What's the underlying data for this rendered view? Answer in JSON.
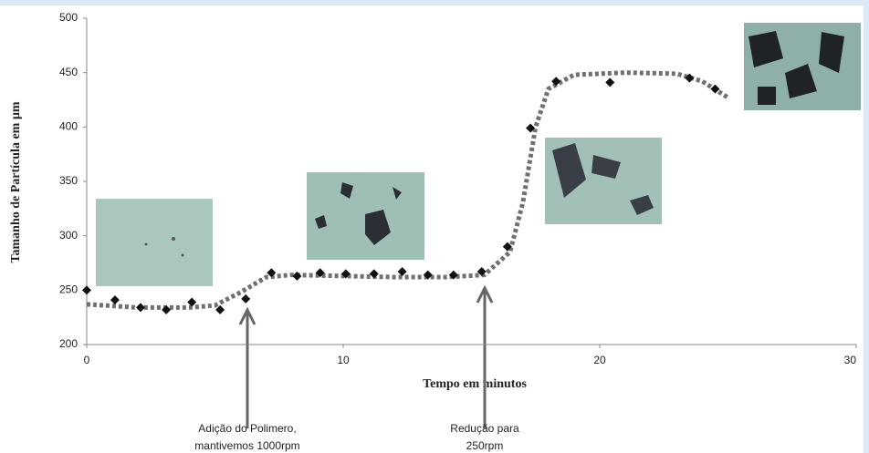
{
  "chart_data": {
    "type": "scatter",
    "xlabel": "Tempo em minutos",
    "ylabel": "Tamanho de Partícula em µm",
    "x": [
      0,
      1.1,
      2.1,
      3.1,
      4.1,
      5.2,
      6.2,
      7.2,
      8.2,
      9.1,
      10.1,
      11.2,
      12.3,
      13.3,
      14.3,
      15.4,
      16.4,
      17.3,
      18.3,
      20.4,
      23.5,
      24.5
    ],
    "values": [
      250,
      241,
      234,
      232,
      239,
      232,
      242,
      266,
      263,
      266,
      265,
      265,
      267,
      264,
      264,
      267,
      290,
      399,
      442,
      441,
      445,
      435
    ],
    "color": "#111111",
    "trend": {
      "color": "#707070",
      "x": [
        0,
        2,
        4,
        5,
        6,
        7,
        8,
        10,
        12,
        14,
        15.5,
        16.5,
        17,
        17.5,
        18,
        19,
        21,
        23,
        24,
        25
      ],
      "values": [
        237,
        234,
        234,
        236,
        248,
        262,
        264,
        263,
        262,
        262,
        264,
        285,
        330,
        400,
        435,
        448,
        450,
        449,
        442,
        427
      ]
    },
    "xlim": [
      0,
      30
    ],
    "xticks": [
      0,
      10,
      20,
      30
    ],
    "ylim": [
      200,
      500
    ],
    "yticks": [
      200,
      250,
      300,
      350,
      400,
      450,
      500
    ],
    "annotations": [
      {
        "lines": [
          "Adição do Polimero,",
          "mantivemos 1000rpm"
        ]
      },
      {
        "lines": [
          "Redução para",
          "250rpm"
        ]
      }
    ]
  }
}
